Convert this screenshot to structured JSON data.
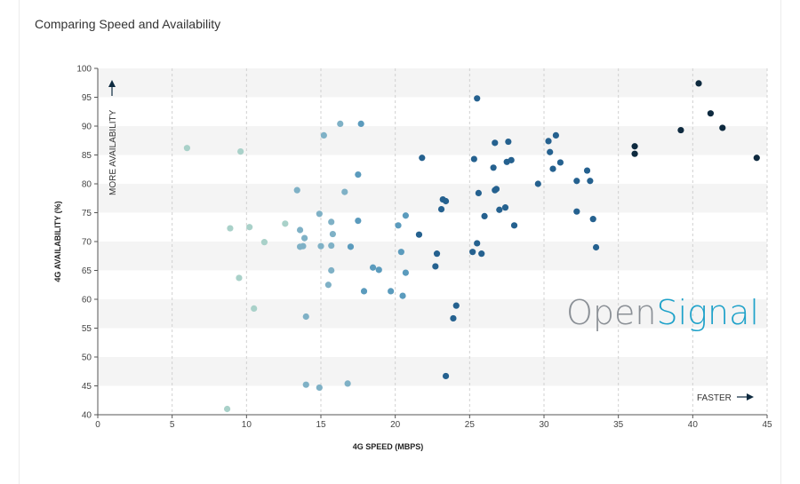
{
  "chart_data": {
    "type": "scatter",
    "title": "Comparing Speed and Availability",
    "xlabel": "4G SPEED (MBPS)",
    "ylabel": "4G AVAILABILITY (%)",
    "xlim": [
      0,
      45
    ],
    "ylim": [
      40,
      100
    ],
    "xticks": [
      "0",
      "5",
      "10",
      "15",
      "20",
      "25",
      "30",
      "35",
      "40",
      "45"
    ],
    "yticks": [
      "40",
      "45",
      "50",
      "55",
      "60",
      "65",
      "70",
      "75",
      "80",
      "85",
      "90",
      "95",
      "100"
    ],
    "annotations": {
      "y_arrow_label": "MORE AVAILABILITY",
      "x_arrow_label": "FASTER"
    },
    "watermark": {
      "part1": "Open",
      "part2": "Signal"
    },
    "colors": {
      "light": "#a9d1c9",
      "mid": "#5b9bbd",
      "dark": "#25618f",
      "darkest": "#0e2a3f",
      "band": "#f4f4f4",
      "grid": "#d0d0d0",
      "brand_grey": "#8a8f95",
      "brand_blue": "#1da1c9"
    },
    "points": [
      [
        6.0,
        86.2
      ],
      [
        9.6,
        85.6
      ],
      [
        8.9,
        72.3
      ],
      [
        10.2,
        72.5
      ],
      [
        11.2,
        69.9
      ],
      [
        9.5,
        63.7
      ],
      [
        10.5,
        58.4
      ],
      [
        8.7,
        41.0
      ],
      [
        12.6,
        73.1
      ],
      [
        13.4,
        78.9
      ],
      [
        13.6,
        72.0
      ],
      [
        13.9,
        70.6
      ],
      [
        13.6,
        69.1
      ],
      [
        13.8,
        69.2
      ],
      [
        14.0,
        57.0
      ],
      [
        14.0,
        45.2
      ],
      [
        14.9,
        44.7
      ],
      [
        14.9,
        74.8
      ],
      [
        15.0,
        69.2
      ],
      [
        15.2,
        88.4
      ],
      [
        15.5,
        62.5
      ],
      [
        15.7,
        65.0
      ],
      [
        15.7,
        73.4
      ],
      [
        15.8,
        71.3
      ],
      [
        15.7,
        69.3
      ],
      [
        16.3,
        90.4
      ],
      [
        16.6,
        78.6
      ],
      [
        16.8,
        45.4
      ],
      [
        17.0,
        69.1
      ],
      [
        17.5,
        81.6
      ],
      [
        17.5,
        73.6
      ],
      [
        17.7,
        90.4
      ],
      [
        17.9,
        61.4
      ],
      [
        18.5,
        65.5
      ],
      [
        18.9,
        65.1
      ],
      [
        19.7,
        61.4
      ],
      [
        20.2,
        72.8
      ],
      [
        20.4,
        68.2
      ],
      [
        20.5,
        60.6
      ],
      [
        20.7,
        74.5
      ],
      [
        20.7,
        64.6
      ],
      [
        21.6,
        71.2
      ],
      [
        21.8,
        84.5
      ],
      [
        22.7,
        65.7
      ],
      [
        22.8,
        67.9
      ],
      [
        23.1,
        75.6
      ],
      [
        23.2,
        77.3
      ],
      [
        23.4,
        77.0
      ],
      [
        23.4,
        46.7
      ],
      [
        23.9,
        56.7
      ],
      [
        24.1,
        58.9
      ],
      [
        25.2,
        68.2
      ],
      [
        25.3,
        84.3
      ],
      [
        25.5,
        94.8
      ],
      [
        25.5,
        69.7
      ],
      [
        25.6,
        78.4
      ],
      [
        25.8,
        67.9
      ],
      [
        26.0,
        74.4
      ],
      [
        26.6,
        82.8
      ],
      [
        26.7,
        78.9
      ],
      [
        26.7,
        87.1
      ],
      [
        26.8,
        79.1
      ],
      [
        27.0,
        75.5
      ],
      [
        27.4,
        75.9
      ],
      [
        27.5,
        83.8
      ],
      [
        27.6,
        87.3
      ],
      [
        27.8,
        84.1
      ],
      [
        28.0,
        72.8
      ],
      [
        29.6,
        80.0
      ],
      [
        30.3,
        87.4
      ],
      [
        30.4,
        85.5
      ],
      [
        30.6,
        82.6
      ],
      [
        30.8,
        88.4
      ],
      [
        31.1,
        83.7
      ],
      [
        32.2,
        80.5
      ],
      [
        32.2,
        75.2
      ],
      [
        32.9,
        82.3
      ],
      [
        33.1,
        80.5
      ],
      [
        33.3,
        73.9
      ],
      [
        33.5,
        69.0
      ],
      [
        36.1,
        86.5
      ],
      [
        36.1,
        85.2
      ],
      [
        39.2,
        89.3
      ],
      [
        40.4,
        97.4
      ],
      [
        41.2,
        92.2
      ],
      [
        42.0,
        89.7
      ],
      [
        44.3,
        84.5
      ]
    ]
  }
}
